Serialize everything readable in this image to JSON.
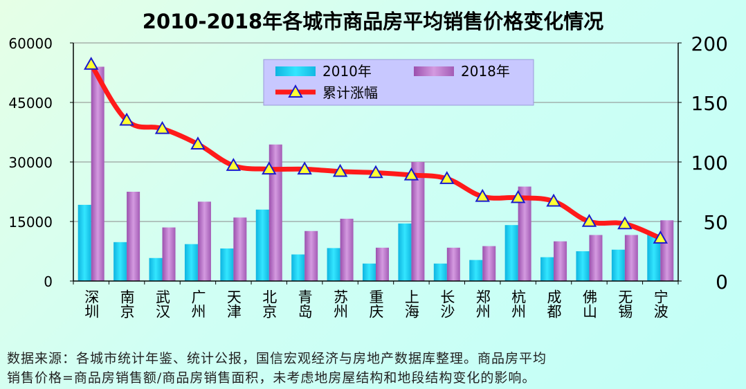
{
  "chart_data": {
    "type": "bar",
    "title": "2010-2018年各城市商品房平均销售价格变化情况",
    "categories": [
      "深圳",
      "南京",
      "武汉",
      "广州",
      "天津",
      "北京",
      "青岛",
      "苏州",
      "重庆",
      "上海",
      "长沙",
      "郑州",
      "杭州",
      "成都",
      "佛山",
      "无锡",
      "宁波"
    ],
    "series": [
      {
        "name": "2010年",
        "axis": "left",
        "color": "#19c9ec",
        "values": [
          19200,
          9800,
          5800,
          9300,
          8200,
          18000,
          6700,
          8300,
          4400,
          14500,
          4400,
          5300,
          14100,
          6000,
          7500,
          7900,
          11800
        ]
      },
      {
        "name": "2018年",
        "axis": "left",
        "color": "#b46cc2",
        "values": [
          54000,
          22500,
          13500,
          20000,
          16000,
          34400,
          12600,
          15700,
          8400,
          30000,
          8400,
          8800,
          23800,
          10000,
          11600,
          11600,
          15300
        ]
      },
      {
        "name": "累计涨幅",
        "axis": "right",
        "type": "line",
        "color": "#ff1a1a",
        "marker": "triangle",
        "marker_color": "#ffff33",
        "values": [
          182,
          135,
          128,
          115,
          97,
          94,
          94,
          92,
          91,
          89,
          86,
          71,
          70,
          67,
          50,
          48,
          36
        ]
      }
    ],
    "ylim": [
      0,
      60000
    ],
    "yticks": [
      0,
      15000,
      30000,
      45000,
      60000
    ],
    "y2lim": [
      0,
      200
    ],
    "y2ticks": [
      0,
      50,
      100,
      150,
      200
    ],
    "grid": true,
    "legend": {
      "position": "top-center",
      "entries": [
        "2010年",
        "2018年",
        "累计涨幅"
      ]
    }
  },
  "footnote": {
    "line1": "数据来源：各城市统计年鉴、统计公报，国信宏观经济与房地产数据库整理。商品房平均",
    "line2": "销售价格=商品房销售额/商品房销售面积，未考虑地房屋结构和地段结构变化的影响。"
  }
}
